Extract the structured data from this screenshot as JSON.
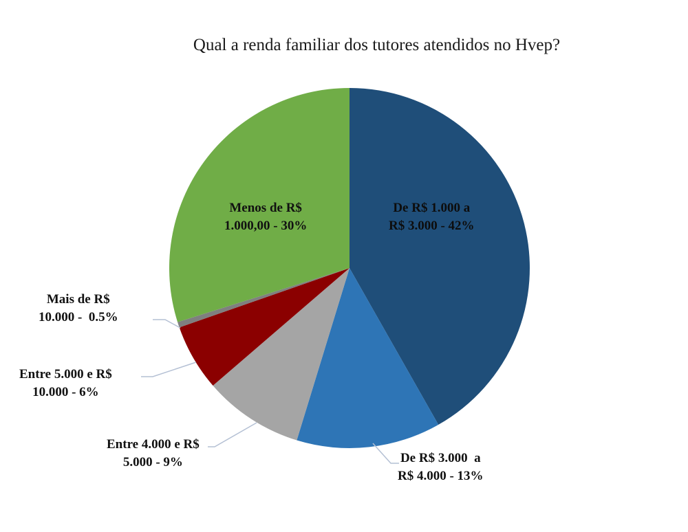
{
  "chart_data": {
    "type": "pie",
    "title": "Qual a renda familiar dos tutores atendidos no Hvep?",
    "start_angle": "12 o'clock, clockwise",
    "slices": [
      {
        "label": "De R$ 1.000 a R$ 3.000",
        "value": 42,
        "display": "De R$ 1.000 a\nR$ 3.000 - 42%",
        "color": "#1F4E79"
      },
      {
        "label": "De R$ 3.000 a R$ 4.000",
        "value": 13,
        "display": "De R$ 3.000  a\nR$ 4.000 - 13%",
        "color": "#2E75B6"
      },
      {
        "label": "Entre 4.000 e R$ 5.000",
        "value": 9,
        "display": "Entre 4.000 e R$\n5.000 - 9%",
        "color": "#A5A5A5"
      },
      {
        "label": "Entre 5.000 e R$ 10.000",
        "value": 6,
        "display": "Entre 5.000 e R$\n10.000 - 6%",
        "color": "#8B0000"
      },
      {
        "label": "Mais de R$ 10.000",
        "value": 0.5,
        "display": "Mais de R$\n10.000 -  0.5%",
        "color": "#7F7F7F"
      },
      {
        "label": "Menos de R$ 1.000,00",
        "value": 30,
        "display": "Menos de R$\n1.000,00 - 30%",
        "color": "#70AD47"
      }
    ],
    "legend": "none (data labels)"
  },
  "labels": {
    "s0": "De R$ 1.000 a\nR$ 3.000 - 42%",
    "s1": "De R$ 3.000  a\nR$ 4.000 - 13%",
    "s2": "Entre 4.000 e R$\n5.000 - 9%",
    "s3": "Entre 5.000 e R$\n10.000 - 6%",
    "s4": "Mais de R$\n10.000 -  0.5%",
    "s5": "Menos de R$\n1.000,00 - 30%"
  }
}
